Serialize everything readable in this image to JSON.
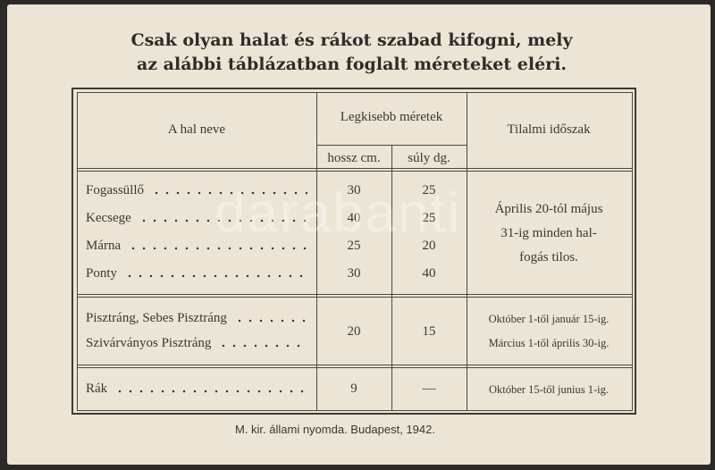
{
  "title": [
    "Csak olyan halat és rákot szabad kifogni, mely",
    "az alábbi táblázatban foglalt méreteket eléri."
  ],
  "table": {
    "headers": {
      "name": "A hal neve",
      "min_size": "Legkisebb méretek",
      "length": "hossz cm.",
      "weight": "súly dg.",
      "closed": "Tilalmi időszak"
    },
    "groups": [
      {
        "rows": [
          {
            "name": "Fogassüllő",
            "length": 30,
            "weight": 25
          },
          {
            "name": "Kecsege",
            "length": 40,
            "weight": 25
          },
          {
            "name": "Márna",
            "length": 25,
            "weight": 20
          },
          {
            "name": "Ponty",
            "length": 30,
            "weight": 40
          }
        ],
        "closed": [
          "Április 20-tól május",
          "31-ig minden hal-",
          "fogás tilos."
        ]
      },
      {
        "rows": [
          {
            "name": "Pisztráng, Sebes Pisztráng"
          },
          {
            "name": "Szivárványos Pisztráng"
          }
        ],
        "length": 20,
        "weight": 15,
        "closed": [
          "Október 1-től január 15-ig.",
          "Március 1-től április 30-ig."
        ]
      },
      {
        "rows": [
          {
            "name": "Rák",
            "length": 9,
            "weight": "—"
          }
        ],
        "closed": [
          "Október 15-től junius 1-ig."
        ]
      }
    ]
  },
  "footer": "M. kir. állami nyomda. Budapest, 1942.",
  "watermark": "darabanti"
}
